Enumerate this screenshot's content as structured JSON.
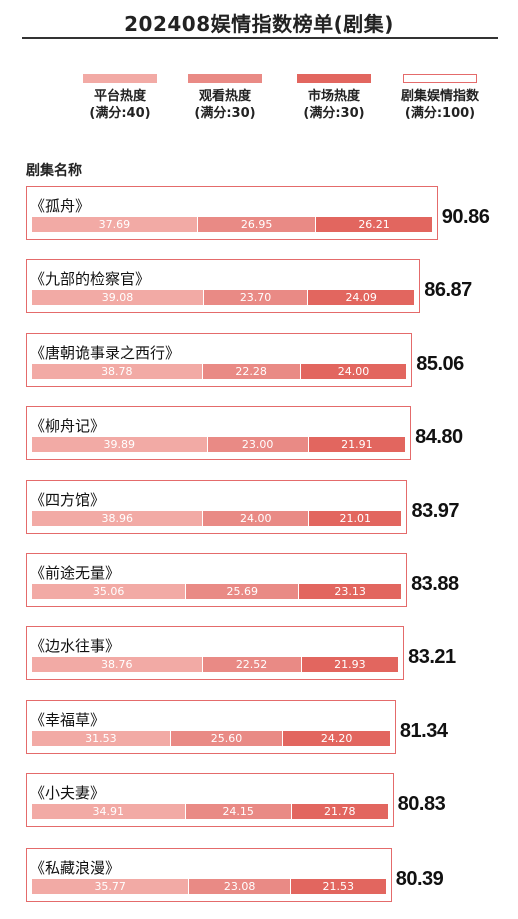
{
  "title": "202408娱情指数榜单(剧集)",
  "column_header": "剧集名称",
  "colors": {
    "platform": "#f2aaa5",
    "viewing": "#e98a85",
    "market": "#e2665f",
    "outline": "#e46b6b"
  },
  "legend": [
    {
      "key": "platform",
      "label": "平台热度",
      "max": "(满分:40)"
    },
    {
      "key": "viewing",
      "label": "观看热度",
      "max": "(满分:30)"
    },
    {
      "key": "market",
      "label": "市场热度",
      "max": "(满分:30)"
    },
    {
      "key": "total",
      "label": "剧集娱情指数",
      "max": "(满分:100)"
    }
  ],
  "chart_data": {
    "type": "bar",
    "orientation": "horizontal",
    "stacked": true,
    "title": "202408娱情指数榜单(剧集)",
    "categories": [
      "《孤舟》",
      "《九部的检察官》",
      "《唐朝诡事录之西行》",
      "《柳舟记》",
      "《四方馆》",
      "《前途无量》",
      "《边水往事》",
      "《幸福草》",
      "《小夫妻》",
      "《私藏浪漫》"
    ],
    "series": [
      {
        "name": "平台热度",
        "values": [
          "37.69",
          "39.08",
          "38.78",
          "39.89",
          "38.96",
          "35.06",
          "38.76",
          "31.53",
          "34.91",
          "35.77"
        ]
      },
      {
        "name": "观看热度",
        "values": [
          "26.95",
          "23.70",
          "22.28",
          "23.00",
          "24.00",
          "25.69",
          "22.52",
          "25.60",
          "24.15",
          "23.08"
        ]
      },
      {
        "name": "市场热度",
        "values": [
          "26.21",
          "24.09",
          "24.00",
          "21.91",
          "21.01",
          "23.13",
          "21.93",
          "24.20",
          "21.78",
          "21.53"
        ]
      }
    ],
    "totals": [
      "90.86",
      "86.87",
      "85.06",
      "84.80",
      "83.97",
      "83.88",
      "83.21",
      "81.34",
      "80.83",
      "80.39"
    ],
    "legend_position": "top"
  }
}
